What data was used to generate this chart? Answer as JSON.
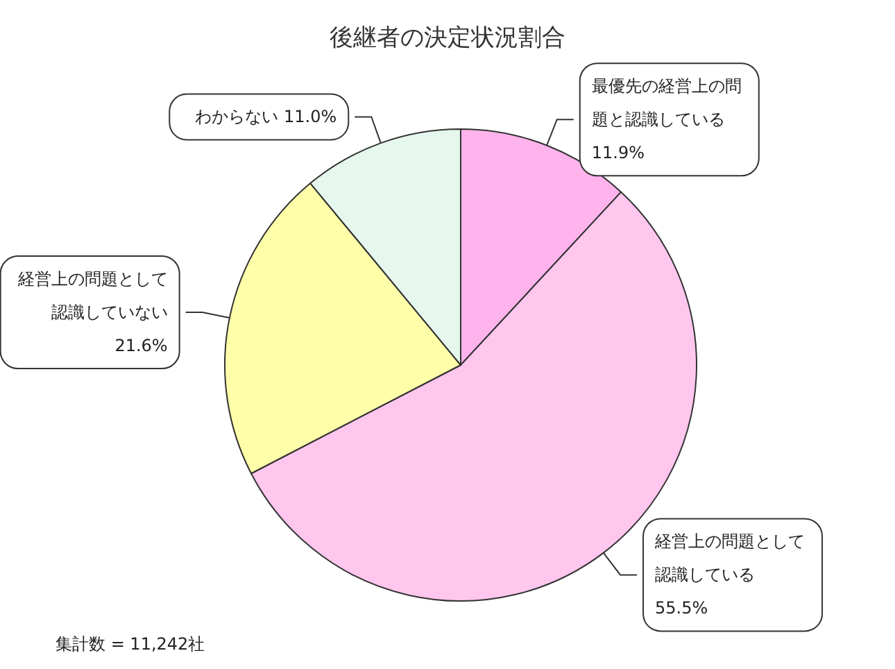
{
  "chart_data": {
    "type": "pie",
    "title": "後継者の決定状況割合",
    "categories": [
      "最優先の経営上の問題と認識している",
      "経営上の問題として認識している",
      "経営上の問題として認識していない",
      "わからない"
    ],
    "values": [
      11.9,
      55.5,
      21.6,
      11.0
    ],
    "value_labels": [
      "11.9%",
      "55.5%",
      "21.6%",
      "11.0%"
    ],
    "colors": [
      "#ffb3ec",
      "#ffc6ee",
      "#ffffaa",
      "#e6f7ee"
    ],
    "annotations": [
      "集計数 = 11,242社"
    ]
  }
}
